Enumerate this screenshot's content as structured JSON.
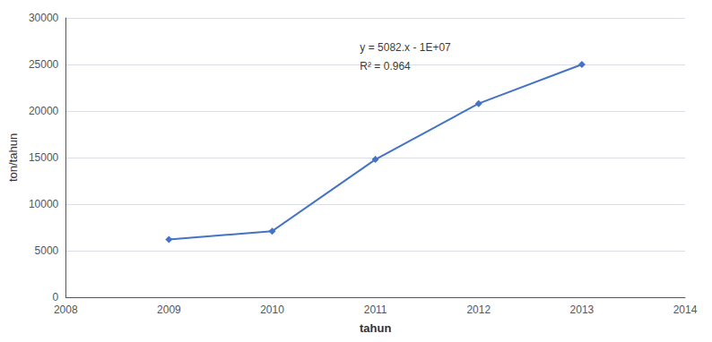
{
  "chart_data": {
    "type": "line",
    "x": [
      2009,
      2010,
      2011,
      2012,
      2013
    ],
    "values": [
      6200,
      7100,
      14800,
      20800,
      25000
    ],
    "color": "#4472c4",
    "marker": "diamond",
    "xlabel": "tahun",
    "ylabel": "ton/tahun",
    "xlim": [
      2008,
      2014
    ],
    "ylim": [
      0,
      30000
    ],
    "xticks": [
      2008,
      2009,
      2010,
      2011,
      2012,
      2013,
      2014
    ],
    "yticks": [
      0,
      5000,
      10000,
      15000,
      20000,
      25000,
      30000
    ],
    "grid": true,
    "annotations": [
      {
        "text": "y = 5082.x - 1E+07",
        "x": 2010.85,
        "y": 26800
      },
      {
        "text": "R² = 0.964",
        "x": 2010.85,
        "y": 24800
      }
    ]
  }
}
